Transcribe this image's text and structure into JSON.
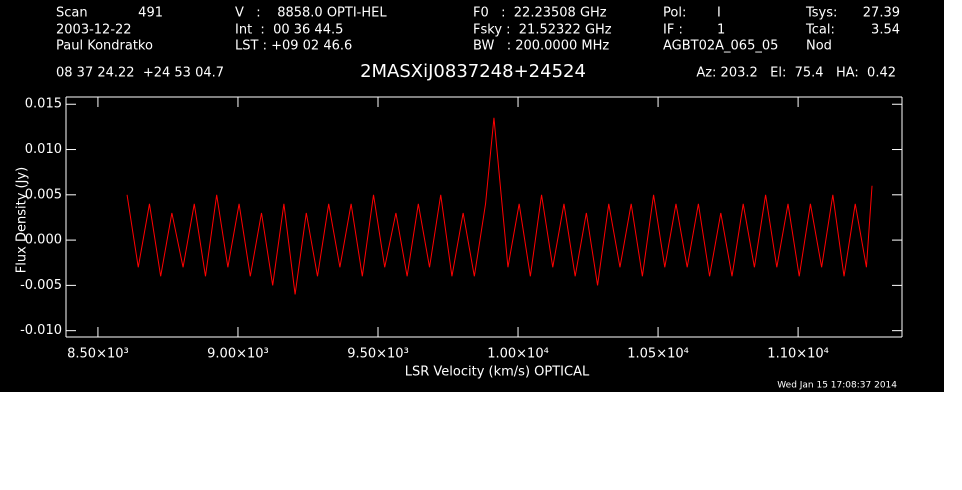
{
  "header": {
    "scan_label": "Scan",
    "scan": "491",
    "date": "2003-12-22",
    "observer": "Paul Kondratko",
    "v": "V   :    8858.0 OPTI-HEL",
    "int": "Int  :  00 36 44.5",
    "lst": "LST : +09 02 46.6",
    "f0": "F0   :  22.23508 GHz",
    "fsky": "Fsky :  21.52322 GHz",
    "bw": "BW   : 200.0000 MHz",
    "pol_label": "Pol:",
    "pol": "I",
    "if_label": "IF :",
    "if": "1",
    "project": "AGBT02A_065_05",
    "tsys_label": "Tsys:",
    "tsys": "27.39",
    "tcal_label": "Tcal:",
    "tcal": "3.54",
    "proc": "Nod",
    "coords": "08 37 24.22  +24 53 04.7",
    "azel": "Az: 203.2   El:  75.4   HA:  0.42",
    "timestamp": "Wed Jan 15 17:08:37 2014"
  },
  "chart_data": {
    "type": "line",
    "title": "2MASXiJ0837248+24524",
    "xlabel": "LSR Velocity (km/s) OPTICAL",
    "ylabel": "Flux Density (Jy)",
    "x": [
      8604,
      8644,
      8684,
      8724,
      8764,
      8804,
      8844,
      8884,
      8924,
      8964,
      9004,
      9044,
      9084,
      9124,
      9164,
      9204,
      9244,
      9284,
      9324,
      9364,
      9404,
      9444,
      9484,
      9524,
      9564,
      9604,
      9644,
      9684,
      9724,
      9764,
      9804,
      9844,
      9884,
      9914,
      9964,
      10004,
      10044,
      10084,
      10124,
      10164,
      10204,
      10244,
      10284,
      10324,
      10364,
      10404,
      10444,
      10484,
      10524,
      10564,
      10604,
      10644,
      10684,
      10724,
      10764,
      10804,
      10844,
      10884,
      10924,
      10964,
      11004,
      11044,
      11084,
      11124,
      11164,
      11204,
      11244,
      11264
    ],
    "series": [
      {
        "name": "Flux Density",
        "color": "#ff0000",
        "values": [
          0.005,
          -0.003,
          0.004,
          -0.004,
          0.003,
          -0.003,
          0.004,
          -0.004,
          0.005,
          -0.003,
          0.004,
          -0.004,
          0.003,
          -0.005,
          0.004,
          -0.006,
          0.003,
          -0.004,
          0.004,
          -0.003,
          0.004,
          -0.004,
          0.005,
          -0.003,
          0.003,
          -0.004,
          0.004,
          -0.003,
          0.005,
          -0.004,
          0.003,
          -0.004,
          0.004,
          0.0135,
          -0.003,
          0.004,
          -0.004,
          0.005,
          -0.003,
          0.004,
          -0.004,
          0.003,
          -0.005,
          0.004,
          -0.003,
          0.004,
          -0.004,
          0.005,
          -0.003,
          0.004,
          -0.003,
          0.004,
          -0.004,
          0.003,
          -0.004,
          0.004,
          -0.003,
          0.005,
          -0.003,
          0.004,
          -0.004,
          0.004,
          -0.003,
          0.005,
          -0.004,
          0.004,
          -0.003,
          0.006
        ]
      }
    ],
    "xlim": [
      8386,
      11371
    ],
    "xticks": [
      {
        "value": 8500,
        "label": "8.50×10³"
      },
      {
        "value": 9000,
        "label": "9.00×10³"
      },
      {
        "value": 9500,
        "label": "9.50×10³"
      },
      {
        "value": 10000,
        "label": "1.00×10⁴"
      },
      {
        "value": 10500,
        "label": "1.05×10⁴"
      },
      {
        "value": 11000,
        "label": "1.10×10⁴"
      }
    ],
    "ylim": [
      -0.0107,
      0.0158
    ],
    "yticks": [
      {
        "value": 0.015,
        "label": "0.015"
      },
      {
        "value": 0.01,
        "label": "0.010"
      },
      {
        "value": 0.005,
        "label": "0.005"
      },
      {
        "value": 0,
        "label": "0.000"
      },
      {
        "value": -0.005,
        "label": "-0.005"
      },
      {
        "value": -0.01,
        "label": "-0.010"
      }
    ]
  }
}
